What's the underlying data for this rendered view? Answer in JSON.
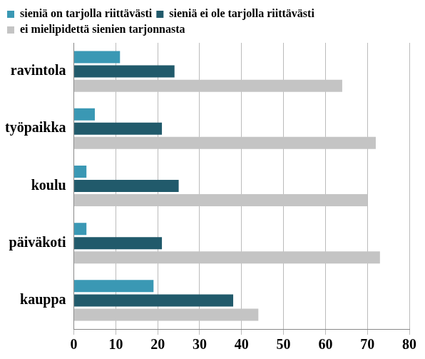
{
  "chart_data": {
    "type": "bar",
    "orientation": "horizontal",
    "categories": [
      "ravintola",
      "työpaikka",
      "koulu",
      "päiväkoti",
      "kauppa"
    ],
    "series": [
      {
        "name": "sieniä on tarjolla riittävästi",
        "color": "#3a98b4",
        "values": [
          11,
          5,
          3,
          3,
          19
        ]
      },
      {
        "name": "sieniä ei ole tarjolla riittävästi",
        "color": "#215a6b",
        "values": [
          24,
          21,
          25,
          21,
          38
        ]
      },
      {
        "name": "ei mielipidettä sienien tarjonnasta",
        "color": "#c4c4c4",
        "values": [
          64,
          72,
          70,
          73,
          44
        ]
      }
    ],
    "xlim": [
      0,
      80
    ],
    "xticks": [
      0,
      10,
      20,
      30,
      40,
      50,
      60,
      70,
      80
    ],
    "grid": true,
    "legend": "top"
  }
}
